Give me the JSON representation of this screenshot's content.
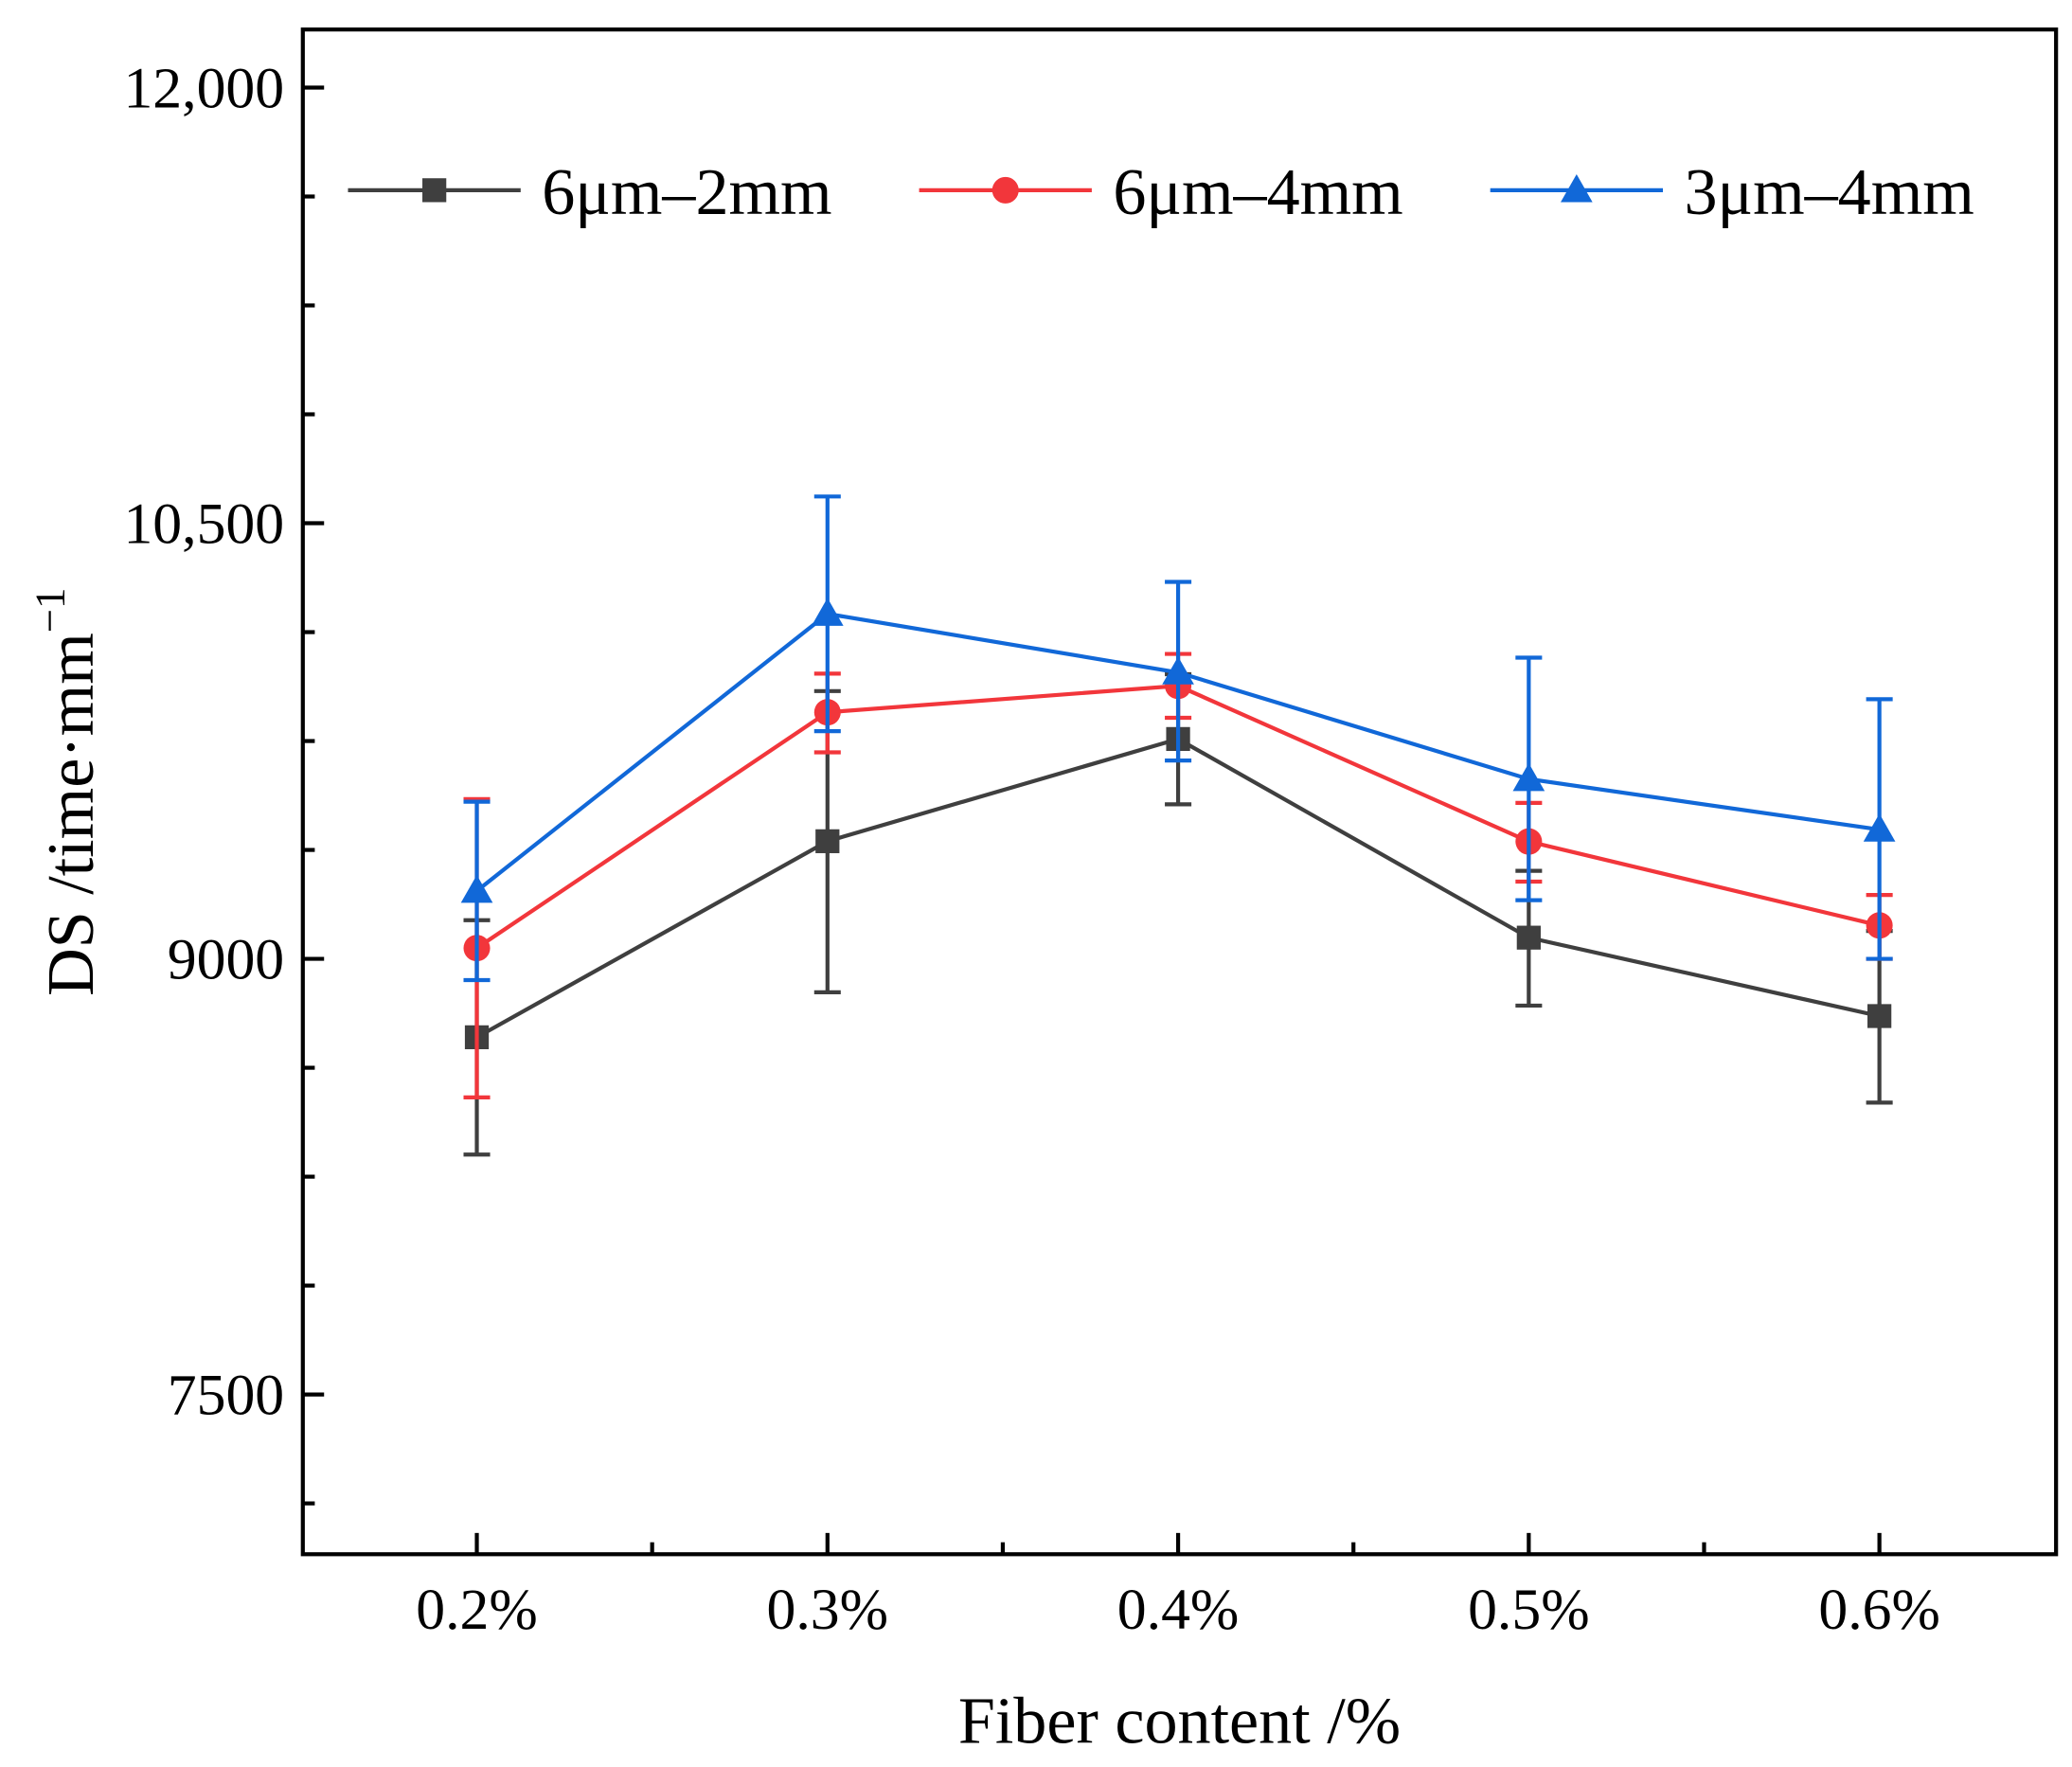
{
  "chart_data": {
    "type": "line",
    "title": "",
    "xlabel": "Fiber content /%",
    "ylabel": "DS /time·mm",
    "ylabel_superscript": "−1",
    "categories": [
      "0.2%",
      "0.3%",
      "0.4%",
      "0.5%",
      "0.6%"
    ],
    "ylim": [
      6950,
      12200
    ],
    "yticks": [
      7500,
      9000,
      10500,
      12000
    ],
    "ytick_labels": [
      "7500",
      "9000",
      "10,500",
      "12,000"
    ],
    "y_minor_step": 375,
    "grid": false,
    "legend_position": "top",
    "series": [
      {
        "name": "6μm–2mm",
        "color": "#3f3f3f",
        "marker": "square",
        "values": [
          8730,
          9405,
          9757,
          9073,
          8803
        ],
        "err_low": [
          8326,
          8885,
          9532,
          8839,
          8505
        ],
        "err_high": [
          9133,
          9922,
          9980,
          9303,
          9096
        ]
      },
      {
        "name": "6μm–4mm",
        "color": "#f2363b",
        "marker": "circle",
        "values": [
          9037,
          9849,
          9940,
          9404,
          9115
        ],
        "err_low": [
          8523,
          9711,
          9830,
          9266,
          9000
        ],
        "err_high": [
          9550,
          9982,
          10050,
          9537,
          9220
        ]
      },
      {
        "name": "3μm–4mm",
        "color": "#1168d8",
        "marker": "triangle",
        "values": [
          9234,
          10188,
          9986,
          9619,
          9445
        ],
        "err_low": [
          8927,
          9784,
          9683,
          9202,
          9000
        ],
        "err_high": [
          9541,
          10592,
          10298,
          10037,
          9894
        ]
      }
    ]
  }
}
